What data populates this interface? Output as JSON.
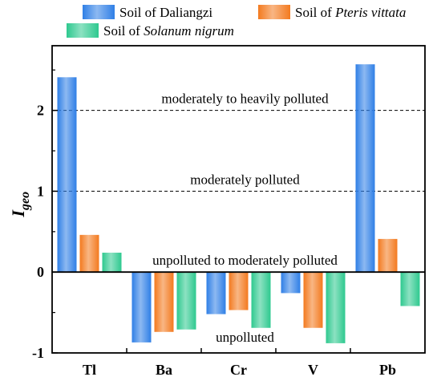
{
  "chart_data": {
    "type": "bar",
    "categories": [
      "Tl",
      "Ba",
      "Cr",
      "V",
      "Pb"
    ],
    "series": [
      {
        "name": "Soil of Daliangzi",
        "values": [
          2.41,
          -0.87,
          -0.52,
          -0.26,
          2.57
        ],
        "color": "#2f7fe6"
      },
      {
        "name": "Soil of Pteris vittata",
        "values": [
          0.46,
          -0.74,
          -0.47,
          -0.69,
          0.41
        ],
        "color": "#f37a1f"
      },
      {
        "name": "Soil of Solanum nigrum",
        "values": [
          0.24,
          -0.71,
          -0.69,
          -0.88,
          -0.42
        ],
        "color": "#2ec98f"
      }
    ],
    "legend": [
      {
        "prefix": "Soil of ",
        "italic": "Daliangzi",
        "italic_flag": false
      },
      {
        "prefix": "Soil of ",
        "italic": "Pteris vittata",
        "italic_flag": true
      },
      {
        "prefix": "Soil of ",
        "italic": "Solanum nigrum",
        "italic_flag": true
      }
    ],
    "ylabel": {
      "main": "I",
      "sub": "geo"
    },
    "yticks": [
      -1,
      0,
      1,
      2
    ],
    "ylim": [
      -1,
      2.8
    ],
    "reference_lines": [
      1,
      2
    ],
    "annotations": [
      {
        "text": "moderately to heavily polluted",
        "y": 2.1
      },
      {
        "text": "moderately polluted",
        "y": 1.1
      },
      {
        "text": "unpolluted to moderately polluted",
        "y": 0.1
      },
      {
        "text": "unpolluted",
        "y": -0.85
      }
    ]
  }
}
